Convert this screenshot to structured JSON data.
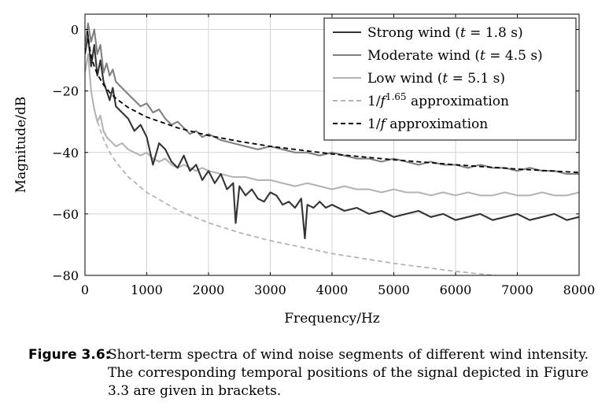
{
  "chart_data": {
    "type": "line",
    "xlabel": "Frequency/Hz",
    "ylabel": "Magnitude/dB",
    "xlim": [
      0,
      8000
    ],
    "ylim": [
      -80,
      5
    ],
    "xticks": [
      0,
      1000,
      2000,
      3000,
      4000,
      5000,
      6000,
      7000,
      8000
    ],
    "yticks": [
      -80,
      -60,
      -40,
      -20,
      0
    ],
    "grid": true,
    "legend_position": "top-right",
    "series": [
      {
        "name": "Strong wind (t = 1.8 s)",
        "legend_label": {
          "pre": "Strong wind (",
          "var": "t",
          "mid": " = 1.8 s)"
        },
        "color": "#333333",
        "style": "solid",
        "x": [
          0,
          50,
          100,
          150,
          200,
          250,
          300,
          350,
          400,
          450,
          500,
          600,
          700,
          800,
          900,
          1000,
          1100,
          1200,
          1300,
          1400,
          1500,
          1600,
          1700,
          1800,
          1900,
          2000,
          2100,
          2200,
          2300,
          2400,
          2440,
          2500,
          2600,
          2700,
          2800,
          2900,
          3000,
          3100,
          3200,
          3300,
          3400,
          3500,
          3560,
          3600,
          3700,
          3800,
          3900,
          4000,
          4200,
          4400,
          4600,
          4800,
          5000,
          5200,
          5400,
          5600,
          5800,
          6000,
          6200,
          6400,
          6600,
          6800,
          7000,
          7200,
          7400,
          7600,
          7800,
          8000
        ],
        "y": [
          -8,
          -2,
          -12,
          -5,
          -15,
          -10,
          -17,
          -20,
          -23,
          -19,
          -25,
          -27,
          -29,
          -33,
          -31,
          -35,
          -44,
          -37,
          -39,
          -43,
          -45,
          -41,
          -46,
          -44,
          -49,
          -46,
          -50,
          -47,
          -52,
          -50,
          -63,
          -51,
          -54,
          -52,
          -55,
          -56,
          -53,
          -54,
          -57,
          -56,
          -58,
          -55,
          -68,
          -57,
          -58,
          -56,
          -58,
          -57,
          -59,
          -58,
          -60,
          -59,
          -61,
          -60,
          -59,
          -61,
          -60,
          -62,
          -61,
          -60,
          -62,
          -61,
          -60,
          -62,
          -61,
          -60,
          -62,
          -61
        ]
      },
      {
        "name": "Moderate wind (t = 4.5 s)",
        "legend_label": {
          "pre": "Moderate wind (",
          "var": "t",
          "mid": " = 4.5 s)"
        },
        "color": "#808080",
        "style": "solid",
        "x": [
          0,
          50,
          100,
          150,
          200,
          250,
          300,
          350,
          400,
          450,
          500,
          600,
          700,
          800,
          900,
          1000,
          1100,
          1200,
          1300,
          1400,
          1500,
          1600,
          1700,
          1800,
          1900,
          2000,
          2200,
          2400,
          2600,
          2800,
          3000,
          3200,
          3400,
          3600,
          3800,
          4000,
          4200,
          4400,
          4600,
          4800,
          5000,
          5200,
          5400,
          5600,
          5800,
          6000,
          6200,
          6400,
          6600,
          6800,
          7000,
          7200,
          7400,
          7600,
          7800,
          8000
        ],
        "y": [
          -6,
          2,
          -4,
          0,
          -8,
          -5,
          -14,
          -11,
          -15,
          -13,
          -17,
          -19,
          -21,
          -23,
          -25,
          -24,
          -27,
          -26,
          -29,
          -31,
          -30,
          -32,
          -34,
          -33,
          -35,
          -34,
          -36,
          -37,
          -38,
          -39,
          -38,
          -39,
          -40,
          -40,
          -41,
          -40,
          -41,
          -42,
          -42,
          -43,
          -42,
          -43,
          -44,
          -43,
          -44,
          -44,
          -45,
          -44,
          -45,
          -45,
          -46,
          -45,
          -46,
          -46,
          -47,
          -47
        ]
      },
      {
        "name": "Low wind (t = 5.1 s)",
        "legend_label": {
          "pre": "Low wind (",
          "var": "t",
          "mid": " = 5.1 s)"
        },
        "color": "#b4b4b4",
        "style": "solid",
        "x": [
          0,
          50,
          100,
          150,
          200,
          250,
          300,
          350,
          400,
          450,
          500,
          600,
          700,
          800,
          900,
          1000,
          1100,
          1200,
          1300,
          1400,
          1500,
          1600,
          1700,
          1800,
          1900,
          2000,
          2200,
          2400,
          2600,
          2800,
          3000,
          3200,
          3400,
          3600,
          3800,
          4000,
          4200,
          4400,
          4600,
          4800,
          5000,
          5200,
          5400,
          5600,
          5800,
          6000,
          6200,
          6400,
          6600,
          6800,
          7000,
          7200,
          7400,
          7600,
          7800,
          8000
        ],
        "y": [
          -14,
          -8,
          -20,
          -26,
          -30,
          -28,
          -33,
          -35,
          -36,
          -37,
          -38,
          -37,
          -39,
          -40,
          -41,
          -40,
          -42,
          -43,
          -42,
          -44,
          -45,
          -44,
          -45,
          -46,
          -45,
          -46,
          -47,
          -48,
          -48,
          -49,
          -49,
          -50,
          -51,
          -50,
          -51,
          -52,
          -51,
          -52,
          -52,
          -53,
          -52,
          -53,
          -53,
          -54,
          -53,
          -54,
          -53,
          -54,
          -54,
          -53,
          -54,
          -54,
          -53,
          -54,
          -54,
          -53
        ]
      },
      {
        "name": "1/f^1.65 approximation",
        "legend_label": {
          "pre": "1/",
          "var": "f",
          "sup": "1.65",
          "mid": " approximation"
        },
        "color": "#b4b4b4",
        "style": "dashed",
        "x": [
          100,
          150,
          200,
          300,
          400,
          500,
          700,
          1000,
          1500,
          2000,
          2500,
          3000,
          4000,
          5000,
          6000,
          7000,
          8000
        ],
        "y": [
          -20.0,
          -25.8,
          -29.9,
          -35.7,
          -39.9,
          -43.1,
          -47.9,
          -53.0,
          -58.8,
          -62.9,
          -66.1,
          -68.7,
          -72.9,
          -76.1,
          -78.7,
          -80.8,
          -82.7
        ]
      },
      {
        "name": "1/f approximation",
        "legend_label": {
          "pre": "1/",
          "var": "f",
          "mid": " approximation"
        },
        "color": "#000000",
        "style": "dashed",
        "x": [
          40,
          60,
          80,
          100,
          150,
          200,
          300,
          400,
          500,
          700,
          1000,
          1500,
          2000,
          2500,
          3000,
          4000,
          5000,
          6000,
          7000,
          8000
        ],
        "y": [
          -0.5,
          -4.0,
          -6.5,
          -8.5,
          -12.0,
          -14.5,
          -18.0,
          -20.5,
          -22.4,
          -25.4,
          -28.5,
          -32.0,
          -34.5,
          -36.4,
          -38.0,
          -40.5,
          -42.4,
          -44.0,
          -45.4,
          -46.5
        ]
      }
    ]
  },
  "caption": {
    "label": "Figure 3.6:",
    "text": "Short-term spectra of wind noise segments of different wind intensity. The corresponding temporal positions of the signal depicted in Figure 3.3 are given in brackets."
  }
}
